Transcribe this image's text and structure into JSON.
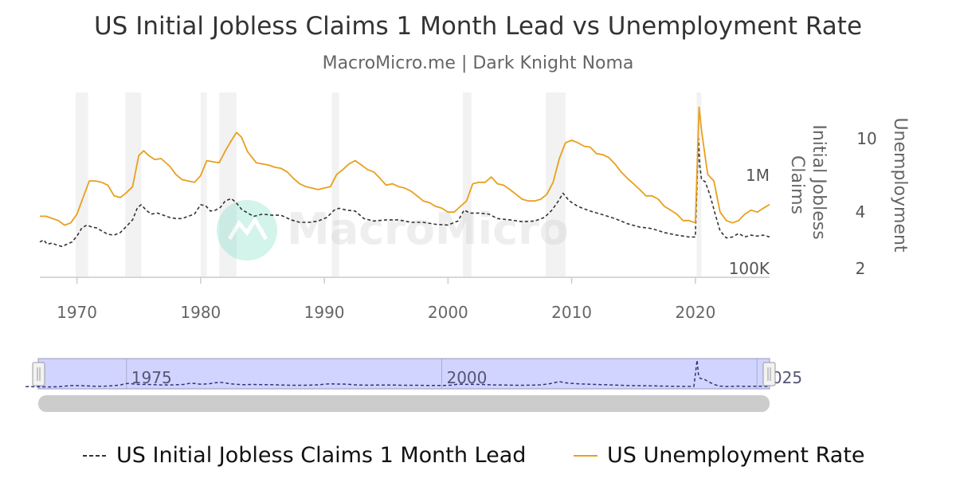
{
  "chart_data": {
    "type": "line",
    "title": "US Initial Jobless Claims 1 Month Lead vs Unemployment Rate",
    "subtitle": "MacroMicro.me | Dark Knight Noma",
    "watermark": "MacroMicro",
    "x_ticks": [
      "1970",
      "1980",
      "1990",
      "2000",
      "2010",
      "2020"
    ],
    "xlim": [
      1967,
      2026
    ],
    "y_axes": [
      {
        "title": "Initial Jobless Claims",
        "scale": "log",
        "ticks": [
          "1M",
          "100K"
        ],
        "tick_values": [
          1000000,
          100000
        ],
        "range": [
          90000,
          4000000
        ]
      },
      {
        "title": "Unemployment",
        "scale": "log",
        "ticks": [
          "10",
          "4",
          "2"
        ],
        "tick_values": [
          10,
          4,
          2
        ],
        "range": [
          1.8,
          17
        ]
      }
    ],
    "recessions": [
      [
        1969.9,
        1970.9
      ],
      [
        1973.9,
        1975.2
      ],
      [
        1980.0,
        1980.5
      ],
      [
        1981.5,
        1982.9
      ],
      [
        1990.6,
        1991.2
      ],
      [
        2001.2,
        2001.9
      ],
      [
        2007.9,
        2009.5
      ],
      [
        2020.1,
        2020.3
      ]
    ],
    "series": [
      {
        "name": "US Initial Jobless Claims 1 Month Lead",
        "color": "#333333",
        "dash": true,
        "x": [
          1967.0,
          1967.3,
          1967.6,
          1968.0,
          1968.4,
          1968.8,
          1969.2,
          1969.6,
          1970.0,
          1970.4,
          1970.8,
          1971.2,
          1971.6,
          1972.0,
          1972.5,
          1973.0,
          1973.5,
          1974.0,
          1974.5,
          1974.9,
          1975.2,
          1975.6,
          1976.0,
          1976.5,
          1977.0,
          1977.5,
          1978.0,
          1978.5,
          1979.0,
          1979.5,
          1980.0,
          1980.4,
          1980.8,
          1981.2,
          1981.6,
          1982.0,
          1982.5,
          1982.9,
          1983.3,
          1983.8,
          1984.3,
          1985.0,
          1985.8,
          1986.5,
          1987.3,
          1988.0,
          1988.8,
          1989.5,
          1990.2,
          1990.8,
          1991.2,
          1991.8,
          1992.5,
          1993.2,
          1994.0,
          1995.0,
          1996.0,
          1997.0,
          1998.0,
          1999.0,
          2000.0,
          2000.8,
          2001.3,
          2001.8,
          2002.5,
          2003.3,
          2004.0,
          2005.0,
          2006.0,
          2007.0,
          2007.8,
          2008.4,
          2008.9,
          2009.3,
          2009.8,
          2010.5,
          2011.5,
          2012.5,
          2013.5,
          2014.5,
          2015.5,
          2016.5,
          2017.5,
          2018.5,
          2019.5,
          2020.0,
          2020.25,
          2020.35,
          2020.5,
          2020.8,
          2021.2,
          2021.6,
          2022.0,
          2022.5,
          2023.0,
          2023.5,
          2024.0,
          2024.5,
          2025.0,
          2025.5,
          2026.0
        ],
        "values": [
          190000,
          200000,
          180000,
          185000,
          175000,
          170000,
          180000,
          190000,
          220000,
          270000,
          290000,
          275000,
          270000,
          250000,
          230000,
          225000,
          240000,
          280000,
          330000,
          450000,
          480000,
          420000,
          380000,
          390000,
          370000,
          350000,
          340000,
          340000,
          360000,
          380000,
          480000,
          470000,
          410000,
          420000,
          450000,
          530000,
          560000,
          500000,
          430000,
          390000,
          360000,
          380000,
          370000,
          370000,
          330000,
          310000,
          310000,
          320000,
          350000,
          420000,
          440000,
          420000,
          410000,
          340000,
          320000,
          330000,
          330000,
          310000,
          310000,
          295000,
          290000,
          320000,
          420000,
          390000,
          390000,
          380000,
          340000,
          330000,
          315000,
          320000,
          350000,
          420000,
          520000,
          640000,
          530000,
          460000,
          410000,
          375000,
          340000,
          300000,
          275000,
          265000,
          240000,
          225000,
          215000,
          215000,
          2500000,
          1300000,
          900000,
          850000,
          600000,
          380000,
          250000,
          210000,
          215000,
          235000,
          215000,
          225000,
          220000,
          225000,
          215000
        ]
      },
      {
        "name": "US Unemployment Rate",
        "color": "#e8a01d",
        "dash": false,
        "x": [
          1967.0,
          1967.5,
          1968.0,
          1968.5,
          1969.0,
          1969.5,
          1970.0,
          1970.5,
          1971.0,
          1971.5,
          1972.0,
          1972.5,
          1973.0,
          1973.5,
          1974.0,
          1974.5,
          1975.0,
          1975.4,
          1975.8,
          1976.3,
          1976.8,
          1977.5,
          1978.0,
          1978.5,
          1979.0,
          1979.5,
          1980.0,
          1980.5,
          1981.0,
          1981.5,
          1982.0,
          1982.5,
          1982.9,
          1983.3,
          1983.8,
          1984.5,
          1985.0,
          1985.5,
          1986.0,
          1986.5,
          1987.0,
          1987.5,
          1988.0,
          1988.5,
          1989.0,
          1989.5,
          1990.0,
          1990.5,
          1991.0,
          1991.5,
          1992.0,
          1992.5,
          1993.0,
          1993.5,
          1994.0,
          1994.5,
          1995.0,
          1995.5,
          1996.0,
          1996.5,
          1997.0,
          1997.5,
          1998.0,
          1998.5,
          1999.0,
          1999.5,
          2000.0,
          2000.5,
          2001.0,
          2001.5,
          2002.0,
          2002.5,
          2003.0,
          2003.5,
          2004.0,
          2004.5,
          2005.0,
          2005.5,
          2006.0,
          2006.5,
          2007.0,
          2007.5,
          2008.0,
          2008.5,
          2009.0,
          2009.5,
          2010.0,
          2010.5,
          2011.0,
          2011.5,
          2012.0,
          2012.5,
          2013.0,
          2013.5,
          2014.0,
          2014.5,
          2015.0,
          2015.5,
          2016.0,
          2016.5,
          2017.0,
          2017.5,
          2018.0,
          2018.5,
          2019.0,
          2019.5,
          2020.0,
          2020.3,
          2020.5,
          2020.8,
          2021.0,
          2021.5,
          2022.0,
          2022.5,
          2023.0,
          2023.5,
          2024.0,
          2024.5,
          2025.0,
          2025.5,
          2026.0
        ],
        "values": [
          3.8,
          3.8,
          3.7,
          3.6,
          3.4,
          3.5,
          3.9,
          4.8,
          5.9,
          5.9,
          5.8,
          5.6,
          4.9,
          4.8,
          5.1,
          5.5,
          8.1,
          8.6,
          8.1,
          7.7,
          7.8,
          7.1,
          6.4,
          6.0,
          5.9,
          5.8,
          6.3,
          7.6,
          7.5,
          7.4,
          8.6,
          9.8,
          10.8,
          10.2,
          8.5,
          7.4,
          7.3,
          7.2,
          7.0,
          6.9,
          6.6,
          6.1,
          5.7,
          5.5,
          5.4,
          5.3,
          5.4,
          5.5,
          6.4,
          6.8,
          7.3,
          7.6,
          7.2,
          6.8,
          6.6,
          6.1,
          5.6,
          5.7,
          5.5,
          5.4,
          5.2,
          4.9,
          4.6,
          4.5,
          4.3,
          4.2,
          4.0,
          4.0,
          4.3,
          4.6,
          5.7,
          5.8,
          5.8,
          6.2,
          5.7,
          5.6,
          5.3,
          5.0,
          4.7,
          4.6,
          4.6,
          4.7,
          5.0,
          5.8,
          7.8,
          9.5,
          9.8,
          9.5,
          9.1,
          9.0,
          8.3,
          8.2,
          7.9,
          7.3,
          6.6,
          6.1,
          5.7,
          5.3,
          4.9,
          4.9,
          4.7,
          4.3,
          4.1,
          3.9,
          3.6,
          3.6,
          3.5,
          14.8,
          11.1,
          7.9,
          6.4,
          5.9,
          4.0,
          3.6,
          3.5,
          3.6,
          3.9,
          4.1,
          4.0,
          4.2,
          4.4
        ]
      }
    ],
    "navigator": {
      "ticks": [
        "1975",
        "2000",
        "2025"
      ]
    },
    "legend_placement": "bottom"
  }
}
